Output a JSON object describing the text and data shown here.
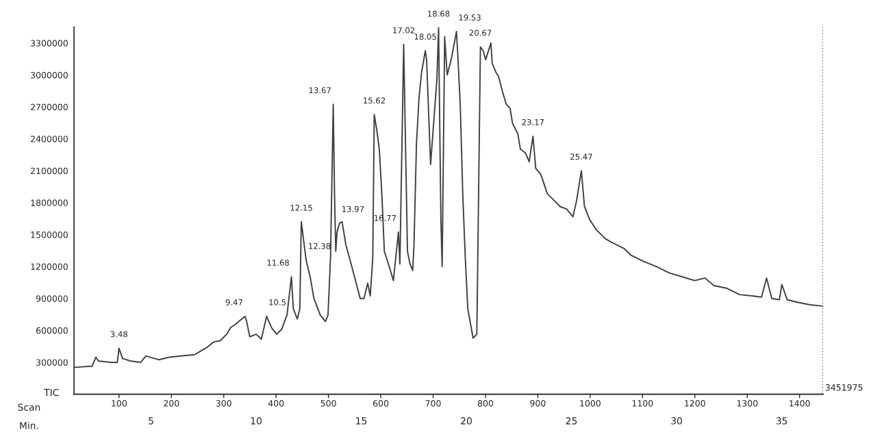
{
  "chart_data": {
    "type": "line",
    "ylabel": "TIC",
    "xlabel": "Min.",
    "x2label": "Scan",
    "xlim": [
      1.34,
      36.97
    ],
    "xticks": [
      5,
      10,
      15,
      20,
      25,
      30,
      35
    ],
    "x2lim": [
      14,
      1445
    ],
    "x2ticks": [
      100,
      200,
      300,
      400,
      500,
      600,
      700,
      800,
      900,
      1000,
      1100,
      1200,
      1300,
      1400
    ],
    "ylim": [
      0,
      3451975
    ],
    "yticks": [
      300000,
      600000,
      900000,
      1200000,
      1500000,
      1800000,
      2100000,
      2400000,
      2700000,
      3000000,
      3300000
    ],
    "grid": false,
    "legend": false,
    "marker": "none",
    "line_style": "solid",
    "ref_lines": [
      {
        "axis": "x",
        "value": 36.97,
        "line_style": "dotted",
        "color": "#404040"
      }
    ],
    "annotations": [
      "3451975",
      {
        "text": "3.48",
        "x": 3.48,
        "y": 432000
      },
      {
        "text": "9.47",
        "x": 9.47,
        "y": 732000
      },
      {
        "text": "10.5",
        "x": 10.5,
        "y": 732000
      },
      {
        "text": "11.68",
        "x": 11.68,
        "y": 1104000
      },
      {
        "text": "12.15",
        "x": 12.15,
        "y": 1620000
      },
      {
        "text": "12.38",
        "x": 12.38,
        "y": 1260000
      },
      {
        "text": "13.67",
        "x": 13.67,
        "y": 2724000
      },
      {
        "text": "13.97",
        "x": 13.97,
        "y": 1608000
      },
      {
        "text": "15.62",
        "x": 15.62,
        "y": 2628000
      },
      {
        "text": "16.77",
        "x": 16.77,
        "y": 1524000
      },
      {
        "text": "17.02",
        "x": 17.02,
        "y": 3288000
      },
      {
        "text": "18.05",
        "x": 18.05,
        "y": 3228000
      },
      {
        "text": "18.68",
        "x": 18.68,
        "y": 3444000
      },
      {
        "text": "19.53",
        "x": 19.53,
        "y": 3408000
      },
      {
        "text": "20.67",
        "x": 20.67,
        "y": 3264000
      },
      {
        "text": "23.17",
        "x": 23.17,
        "y": 2424000
      },
      {
        "text": "25.47",
        "x": 25.47,
        "y": 2100000
      }
    ],
    "series": [
      {
        "color": "#404040",
        "x": [
          1.34,
          2.2,
          2.38,
          2.5,
          3.11,
          3.4,
          3.48,
          3.65,
          4.03,
          4.51,
          4.76,
          5.37,
          5.86,
          6.47,
          7.08,
          7.38,
          7.69,
          7.99,
          8.3,
          8.6,
          8.78,
          9.03,
          9.47,
          9.55,
          9.7,
          10.0,
          10.25,
          10.5,
          10.74,
          10.98,
          11.22,
          11.47,
          11.68,
          11.77,
          11.96,
          12.08,
          12.15,
          12.38,
          12.57,
          12.75,
          13.05,
          13.3,
          13.42,
          13.54,
          13.67,
          13.73,
          13.79,
          13.85,
          13.97,
          14.09,
          14.27,
          14.52,
          14.76,
          14.95,
          15.13,
          15.31,
          15.43,
          15.55,
          15.62,
          15.74,
          15.86,
          15.98,
          16.1,
          16.35,
          16.53,
          16.77,
          16.84,
          17.02,
          17.2,
          17.32,
          17.45,
          17.51,
          17.63,
          17.75,
          17.87,
          18.05,
          18.11,
          18.3,
          18.48,
          18.6,
          18.68,
          18.79,
          18.85,
          18.97,
          19.09,
          19.28,
          19.53,
          19.59,
          19.71,
          19.83,
          19.95,
          20.07,
          20.32,
          20.5,
          20.67,
          20.8,
          20.92,
          21.17,
          21.23,
          21.41,
          21.53,
          21.72,
          21.9,
          22.08,
          22.2,
          22.45,
          22.57,
          22.81,
          22.99,
          23.17,
          23.3,
          23.55,
          23.85,
          24.16,
          24.46,
          24.77,
          25.07,
          25.25,
          25.47,
          25.62,
          25.86,
          26.17,
          26.6,
          26.9,
          27.51,
          27.82,
          28.43,
          29.04,
          29.65,
          30.26,
          30.87,
          31.35,
          31.78,
          32.39,
          33.0,
          33.61,
          34.04,
          34.28,
          34.53,
          34.89,
          35.01,
          35.26,
          35.75,
          36.36,
          36.97
        ],
        "values": [
          252000,
          264000,
          348000,
          312000,
          300000,
          300000,
          432000,
          336000,
          312000,
          300000,
          360000,
          324000,
          348000,
          360000,
          372000,
          408000,
          444000,
          492000,
          504000,
          564000,
          624000,
          660000,
          732000,
          684000,
          540000,
          564000,
          516000,
          732000,
          624000,
          564000,
          612000,
          744000,
          1104000,
          804000,
          708000,
          804000,
          1620000,
          1260000,
          1104000,
          900000,
          744000,
          684000,
          744000,
          1284000,
          2724000,
          1884000,
          1344000,
          1524000,
          1608000,
          1620000,
          1404000,
          1224000,
          1044000,
          900000,
          900000,
          1044000,
          924000,
          1284000,
          2628000,
          2484000,
          2304000,
          1884000,
          1344000,
          1188000,
          1068000,
          1524000,
          1224000,
          3288000,
          1344000,
          1224000,
          1164000,
          1404000,
          2364000,
          2784000,
          3024000,
          3228000,
          3144000,
          2160000,
          2640000,
          2964000,
          3444000,
          1644000,
          1200000,
          3360000,
          3000000,
          3144000,
          3408000,
          3204000,
          2724000,
          1884000,
          1284000,
          804000,
          528000,
          564000,
          3264000,
          3228000,
          3144000,
          3300000,
          3108000,
          3024000,
          2988000,
          2844000,
          2724000,
          2688000,
          2544000,
          2448000,
          2304000,
          2268000,
          2184000,
          2424000,
          2124000,
          2064000,
          1884000,
          1824000,
          1764000,
          1740000,
          1668000,
          1824000,
          2100000,
          1764000,
          1644000,
          1548000,
          1464000,
          1428000,
          1368000,
          1308000,
          1248000,
          1200000,
          1140000,
          1104000,
          1068000,
          1092000,
          1020000,
          996000,
          936000,
          924000,
          912000,
          1092000,
          900000,
          888000,
          1032000,
          888000,
          864000,
          840000,
          828000
        ]
      }
    ]
  }
}
